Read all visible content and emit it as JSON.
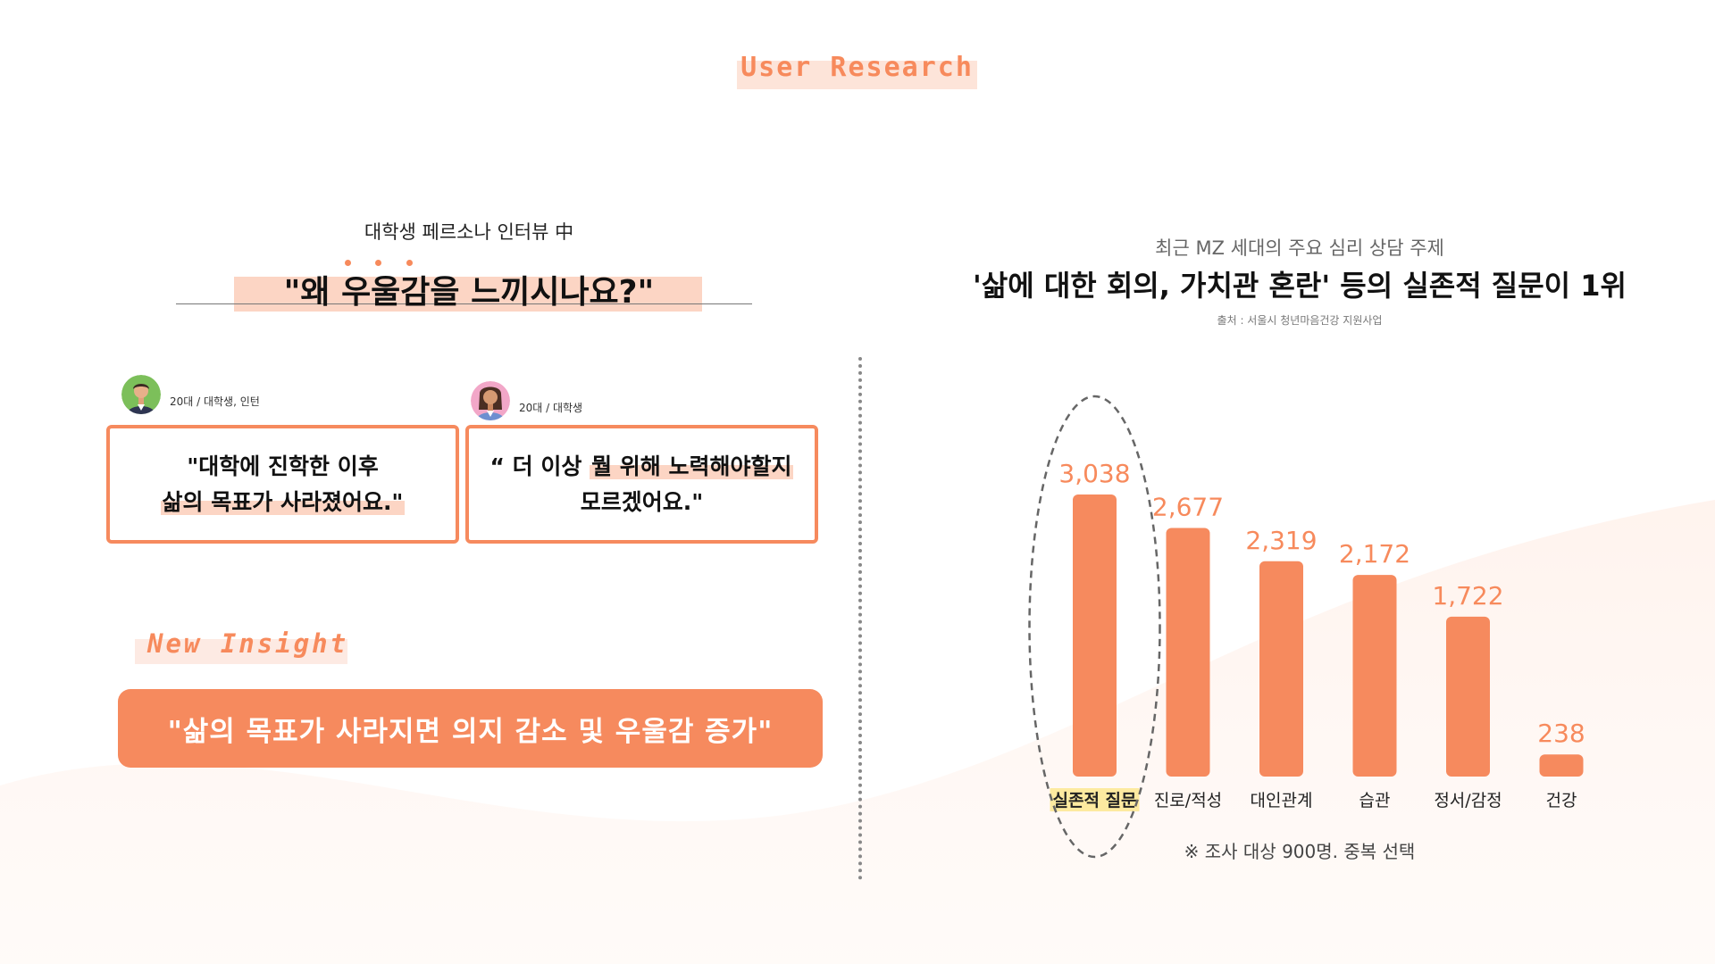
{
  "header": {
    "tag": "User Research"
  },
  "interview": {
    "subtitle": "대학생 페르소나 인터뷰 中",
    "question": "\"왜 우울감을 느끼시나요?\"",
    "personas": [
      {
        "label": "20대 / 대학생, 인턴",
        "quote_line1": "\"대학에 진학한 이후",
        "quote_line2": "삶의 목표가 사라졌어요.\""
      },
      {
        "label": "20대 / 대학생",
        "quote_line1_pre": "“ 더 이상 ",
        "quote_line1_hl": "뭘 위해 노력해야할지",
        "quote_line2": "모르겠어요.\""
      }
    ]
  },
  "insight": {
    "tag": "New Insight",
    "statement": "\"삶의 목표가 사라지면 의지 감소 및 우울감 증가\""
  },
  "chart_header": {
    "subtitle": "최근 MZ 세대의 주요 심리 상담 주제",
    "title": "'삶에 대한 회의, 가치관 혼란' 등의 실존적 질문이 1위",
    "source": "출처 : 서울시 청년마음건강 지원사업"
  },
  "chart_data": {
    "type": "bar",
    "categories": [
      "실존적 질문",
      "진로/적성",
      "대인관계",
      "습관",
      "정서/감정",
      "건강"
    ],
    "values": [
      3038,
      2677,
      2319,
      2172,
      1722,
      238
    ],
    "value_labels": [
      "3,038",
      "2,677",
      "2,319",
      "2,172",
      "1,722",
      "238"
    ],
    "highlight_category": "실존적 질문",
    "bar_color": "#f68a5e",
    "label_color": "#f78a5c",
    "ylim": [
      0,
      3038
    ],
    "grid": false,
    "footnote": "※ 조사 대상 900명. 중복 선택"
  },
  "colors": {
    "accent": "#f68a5e",
    "highlight": "#fcd5c4"
  },
  "icons": [
    "male-avatar-icon",
    "female-avatar-icon"
  ]
}
